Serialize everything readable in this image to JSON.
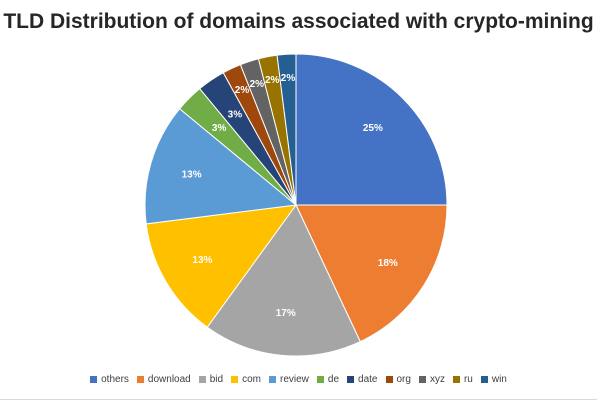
{
  "chart_data": {
    "type": "pie",
    "title": "TLD Distribution of domains associated with crypto-mining",
    "categories": [
      "others",
      "download",
      "bid",
      "com",
      "review",
      "de",
      "date",
      "org",
      "xyz",
      "ru",
      "win"
    ],
    "values": [
      25,
      18,
      17,
      13,
      13,
      3,
      3,
      2,
      2,
      2,
      2
    ],
    "data_labels": [
      "25%",
      "18%",
      "17%",
      "13%",
      "13%",
      "3%",
      "3%",
      "2%",
      "2%",
      "2%",
      "2%"
    ],
    "colors": [
      "#4472C4",
      "#ED7D31",
      "#A5A5A5",
      "#FFC000",
      "#5B9BD5",
      "#70AD47",
      "#264478",
      "#9E480E",
      "#636363",
      "#997300",
      "#255E91"
    ],
    "start_angle_deg": 0,
    "direction": "clockwise",
    "legend_position": "bottom"
  }
}
